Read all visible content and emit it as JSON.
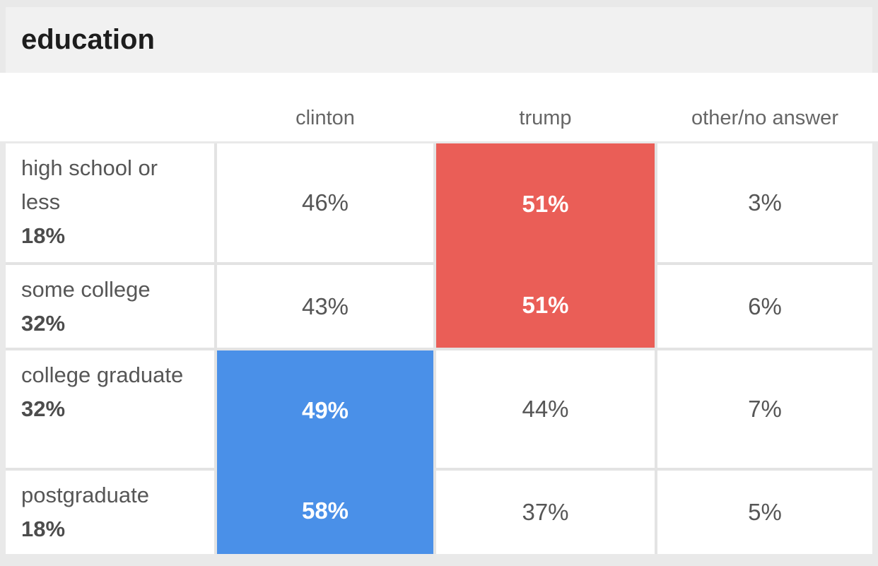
{
  "title": "education",
  "chart_data": {
    "type": "table",
    "title": "education",
    "columns": [
      "clinton",
      "trump",
      "other/no answer"
    ],
    "rows": [
      {
        "category": "high school or less",
        "group_share": "18%",
        "clinton": "46%",
        "trump": "51%",
        "other": "3%",
        "highlight": "trump"
      },
      {
        "category": "some college",
        "group_share": "32%",
        "clinton": "43%",
        "trump": "51%",
        "other": "6%",
        "highlight": "trump"
      },
      {
        "category": "college graduate",
        "group_share": "32%",
        "clinton": "49%",
        "trump": "44%",
        "other": "7%",
        "highlight": "clinton"
      },
      {
        "category": "postgraduate",
        "group_share": "18%",
        "clinton": "58%",
        "trump": "37%",
        "other": "5%",
        "highlight": "clinton"
      }
    ],
    "colors": {
      "clinton_highlight": "#4a90e8",
      "trump_highlight": "#ea5e57",
      "title_band_bg": "#f1f1f1",
      "page_bg": "#e9e9e9",
      "text_gray": "#565656"
    }
  }
}
